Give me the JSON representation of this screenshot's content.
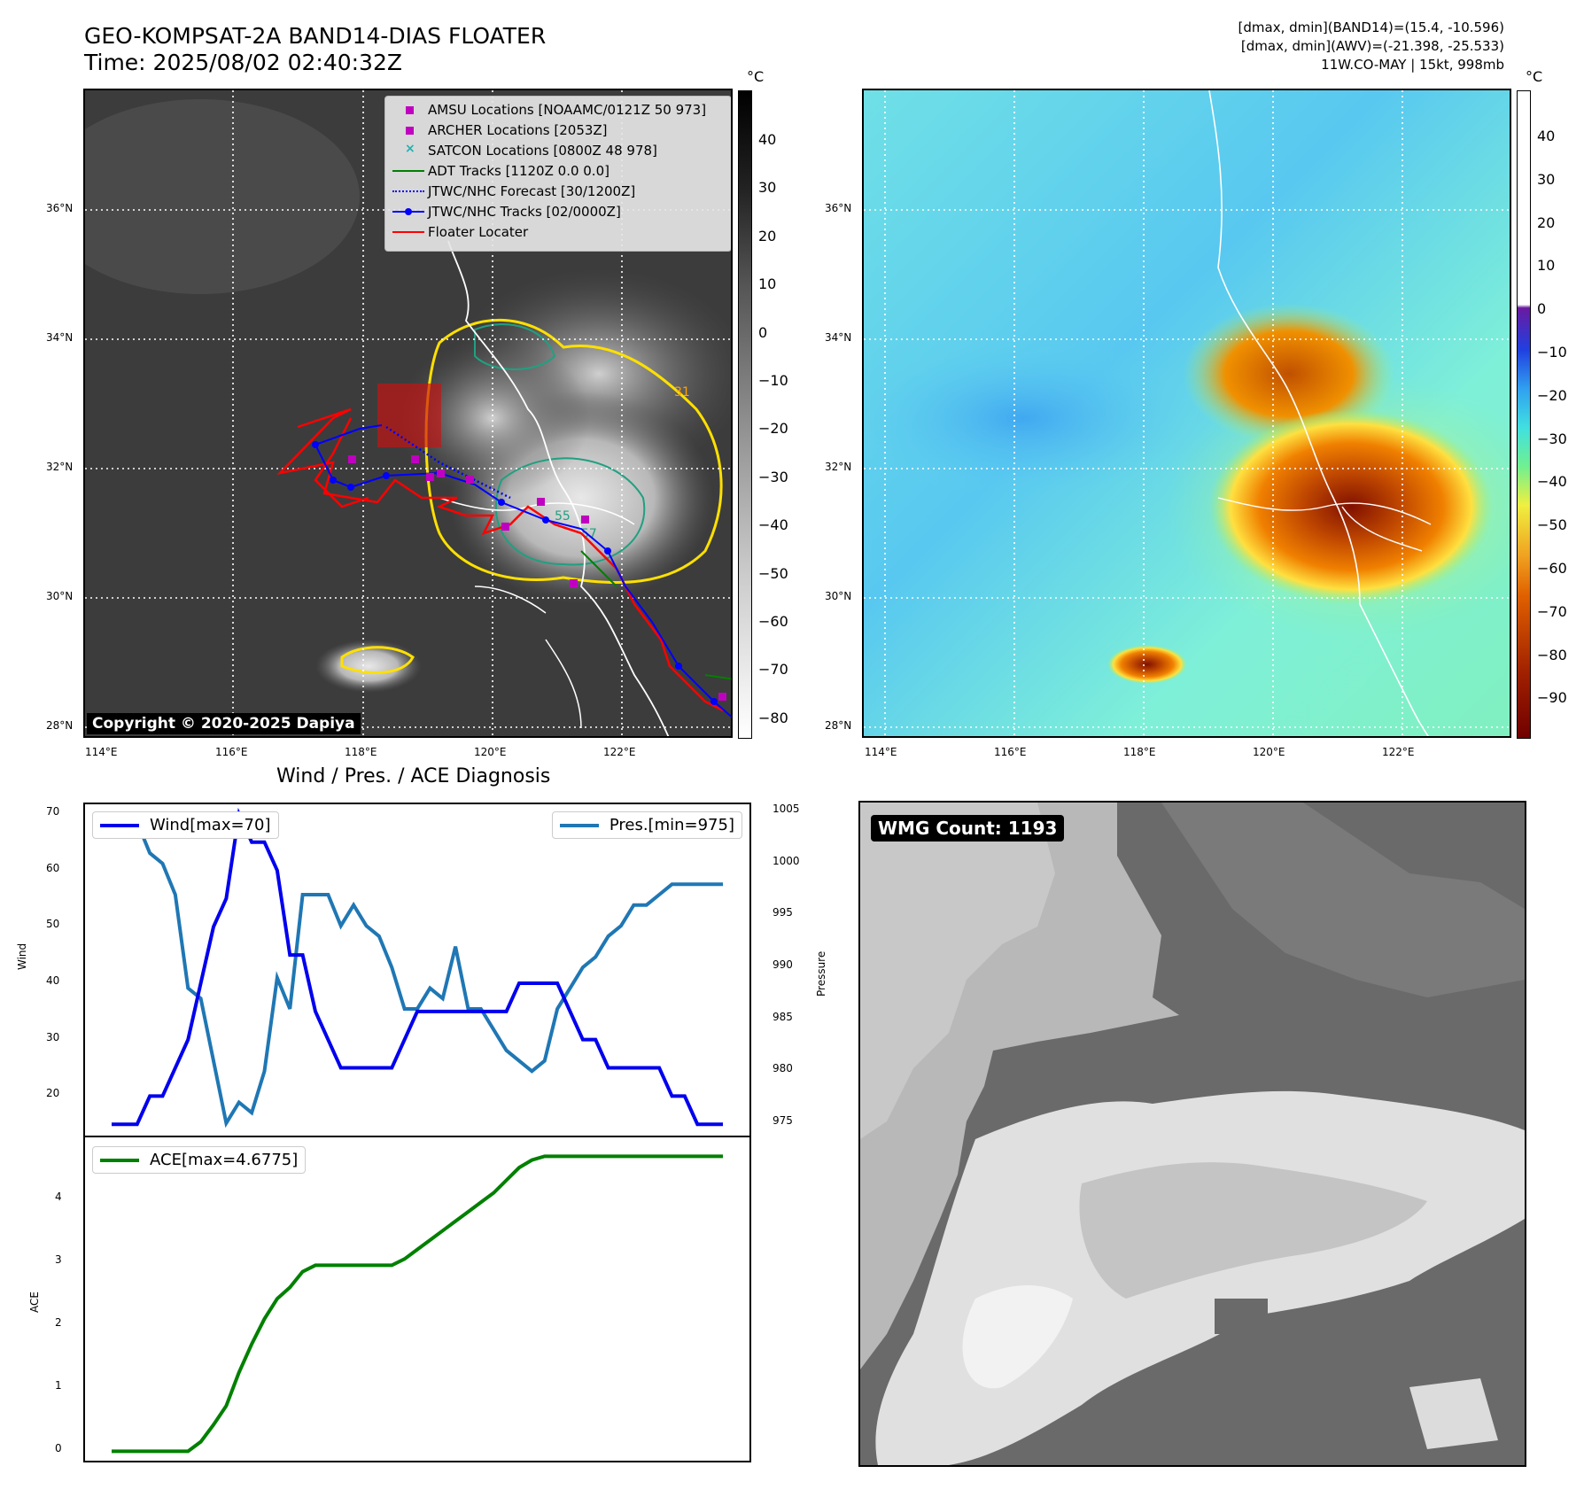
{
  "header": {
    "title_line1": "GEO-KOMPSAT-2A BAND14-DIAS FLOATER",
    "title_line2": "Time: 2025/08/02 02:40:32Z",
    "info_line1": "[dmax, dmin](BAND14)=(15.4, -10.596)",
    "info_line2": "[dmax, dmin](AWV)=(-21.398, -25.533)",
    "info_line3": "11W.CO-MAY | 15kt, 998mb"
  },
  "maps": {
    "lat_labels": [
      "36°N",
      "34°N",
      "32°N",
      "30°N",
      "28°N"
    ],
    "lon_labels": [
      "114°E",
      "116°E",
      "118°E",
      "120°E",
      "122°E"
    ],
    "copyright": "Copyright © 2020-2025 Dapiya",
    "contour_labels": [
      "31",
      "55",
      "57"
    ],
    "legend": [
      {
        "label": "AMSU Locations [NOAAMC/0121Z 50 973]",
        "color": "#c000c0",
        "symbol": "square"
      },
      {
        "label": "ARCHER Locations [2053Z]",
        "color": "#c000c0",
        "symbol": "square"
      },
      {
        "label": "SATCON Locations [0800Z 48 978]",
        "color": "#20b0b0",
        "symbol": "x"
      },
      {
        "label": "ADT Tracks [1120Z 0.0 0.0]",
        "color": "#008000",
        "symbol": "line"
      },
      {
        "label": "JTWC/NHC Forecast [30/1200Z]",
        "color": "#0000ff",
        "symbol": "dotted"
      },
      {
        "label": "JTWC/NHC Tracks [02/0000Z]",
        "color": "#0000ff",
        "symbol": "line-dot"
      },
      {
        "label": "Floater Locater",
        "color": "#ff0000",
        "symbol": "line"
      }
    ],
    "colorbar_ir": {
      "unit": "°C",
      "ticks": [
        "40",
        "30",
        "20",
        "10",
        "0",
        "−10",
        "−20",
        "−30",
        "−40",
        "−50",
        "−60",
        "−70",
        "−80"
      ]
    },
    "colorbar_col": {
      "unit": "°C",
      "ticks": [
        "40",
        "30",
        "20",
        "10",
        "0",
        "−10",
        "−20",
        "−30",
        "−40",
        "−50",
        "−60",
        "−70",
        "−80",
        "−90"
      ]
    }
  },
  "wmg": {
    "label": "WMG Count: 1193"
  },
  "chart_data": [
    {
      "type": "line",
      "title": "Wind / Pres. / ACE Diagnosis",
      "ylabel": "Wind",
      "y2label": "Pressure",
      "ylim": [
        13,
        71.7
      ],
      "y2lim": [
        973.8,
        1005.7
      ],
      "yticks": [
        20,
        30,
        40,
        50,
        60,
        70
      ],
      "y2ticks": [
        975,
        980,
        985,
        990,
        995,
        1000,
        1005
      ],
      "x": [
        0,
        1,
        2,
        3,
        4,
        5,
        6,
        7,
        8,
        9,
        10,
        11,
        12,
        13,
        14,
        15,
        16,
        17,
        18,
        19,
        20,
        21,
        22,
        23,
        24,
        25,
        26,
        27,
        28,
        29,
        30,
        31,
        32,
        33,
        34,
        35,
        36,
        37,
        38,
        39,
        40,
        41,
        42,
        43,
        44,
        45,
        46,
        47,
        48
      ],
      "series": [
        {
          "name": "Wind[max=70]",
          "axis": "left",
          "color": "#0000ee",
          "values": [
            15,
            15,
            15,
            20,
            20,
            25,
            30,
            40,
            50,
            55,
            70,
            65,
            65,
            60,
            45,
            45,
            35,
            30,
            25,
            25,
            25,
            25,
            25,
            30,
            35,
            35,
            35,
            35,
            35,
            35,
            35,
            35,
            40,
            40,
            40,
            40,
            35,
            30,
            30,
            25,
            25,
            25,
            25,
            25,
            20,
            20,
            15,
            15,
            15
          ]
        },
        {
          "name": "Pres.[min=975]",
          "axis": "right",
          "color": "#1f77b4",
          "values": [
            1004,
            1004,
            1004,
            1001,
            1000,
            997,
            988,
            987,
            981,
            975,
            977,
            976,
            980,
            989,
            986,
            997,
            997,
            997,
            994,
            996,
            994,
            993,
            990,
            986,
            986,
            988,
            987,
            992,
            986,
            986,
            984,
            982,
            981,
            980,
            981,
            986,
            988,
            990,
            991,
            993,
            994,
            996,
            996,
            997,
            998,
            998,
            998,
            998,
            998
          ]
        }
      ]
    },
    {
      "type": "line",
      "ylabel": "ACE",
      "ylim": [
        -0.15,
        4.98
      ],
      "yticks": [
        0,
        1,
        2,
        3,
        4
      ],
      "x": [
        0,
        1,
        2,
        3,
        4,
        5,
        6,
        7,
        8,
        9,
        10,
        11,
        12,
        13,
        14,
        15,
        16,
        17,
        18,
        19,
        20,
        21,
        22,
        23,
        24,
        25,
        26,
        27,
        28,
        29,
        30,
        31,
        32,
        33,
        34,
        35,
        36,
        37,
        38,
        39,
        40,
        41,
        42,
        43,
        44,
        45,
        46,
        47,
        48
      ],
      "series": [
        {
          "name": "ACE[max=4.6775]",
          "color": "#008000",
          "values": [
            0,
            0,
            0,
            0,
            0,
            0,
            0,
            0.15,
            0.42,
            0.72,
            1.25,
            1.7,
            2.1,
            2.42,
            2.6,
            2.85,
            2.95,
            2.95,
            2.95,
            2.95,
            2.95,
            2.95,
            2.95,
            3.05,
            3.2,
            3.35,
            3.5,
            3.65,
            3.8,
            3.95,
            4.1,
            4.3,
            4.5,
            4.62,
            4.68,
            4.68,
            4.68,
            4.68,
            4.68,
            4.68,
            4.68,
            4.68,
            4.68,
            4.68,
            4.68,
            4.68,
            4.68,
            4.68,
            4.68
          ]
        }
      ]
    }
  ]
}
